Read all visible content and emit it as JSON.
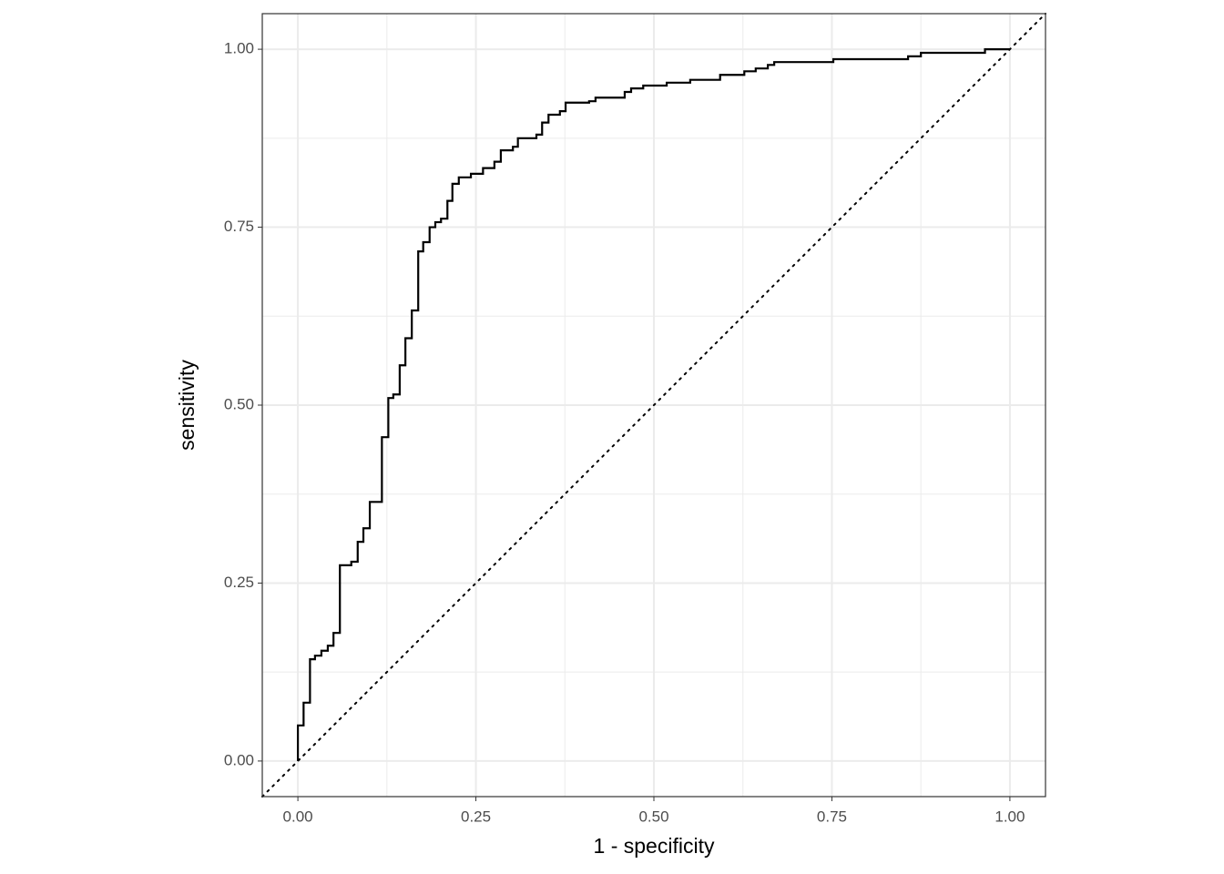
{
  "chart_data": {
    "type": "line",
    "step": true,
    "x_label": "1 - specificity",
    "y_label": "sensitivity",
    "x": [
      0,
      0,
      0.008,
      0.017,
      0.024,
      0.033,
      0.042,
      0.05,
      0.059,
      0.075,
      0.084,
      0.092,
      0.101,
      0.118,
      0.127,
      0.134,
      0.143,
      0.151,
      0.16,
      0.169,
      0.176,
      0.185,
      0.193,
      0.201,
      0.21,
      0.217,
      0.226,
      0.243,
      0.26,
      0.276,
      0.285,
      0.302,
      0.309,
      0.335,
      0.343,
      0.352,
      0.368,
      0.376,
      0.409,
      0.418,
      0.459,
      0.468,
      0.485,
      0.518,
      0.551,
      0.593,
      0.627,
      0.643,
      0.66,
      0.669,
      0.752,
      0.857,
      0.875,
      0.965,
      1.0
    ],
    "series": [
      {
        "color": "#000000",
        "values": [
          0,
          0.05,
          0.082,
          0.143,
          0.148,
          0.155,
          0.162,
          0.18,
          0.275,
          0.28,
          0.308,
          0.327,
          0.364,
          0.455,
          0.51,
          0.515,
          0.556,
          0.594,
          0.633,
          0.716,
          0.729,
          0.75,
          0.757,
          0.762,
          0.787,
          0.811,
          0.82,
          0.825,
          0.833,
          0.842,
          0.858,
          0.863,
          0.875,
          0.88,
          0.897,
          0.908,
          0.913,
          0.925,
          0.927,
          0.932,
          0.94,
          0.945,
          0.949,
          0.953,
          0.957,
          0.964,
          0.969,
          0.973,
          0.978,
          0.982,
          0.986,
          0.99,
          0.995,
          1.0,
          1.0
        ]
      }
    ],
    "xlim": [
      -0.05,
      1.05
    ],
    "ylim": [
      -0.05,
      1.05
    ],
    "xticks": [
      {
        "value": 0,
        "label": "0.00"
      },
      {
        "value": 0.25,
        "label": "0.25"
      },
      {
        "value": 0.5,
        "label": "0.50"
      },
      {
        "value": 0.75,
        "label": "0.75"
      },
      {
        "value": 1,
        "label": "1.00"
      }
    ],
    "yticks": [
      {
        "value": 0,
        "label": "0.00"
      },
      {
        "value": 0.25,
        "label": "0.25"
      },
      {
        "value": 0.5,
        "label": "0.50"
      },
      {
        "value": 0.75,
        "label": "0.75"
      },
      {
        "value": 1,
        "label": "1.00"
      }
    ],
    "grid": true,
    "minor_grid": true,
    "diagonal_reference": true
  }
}
